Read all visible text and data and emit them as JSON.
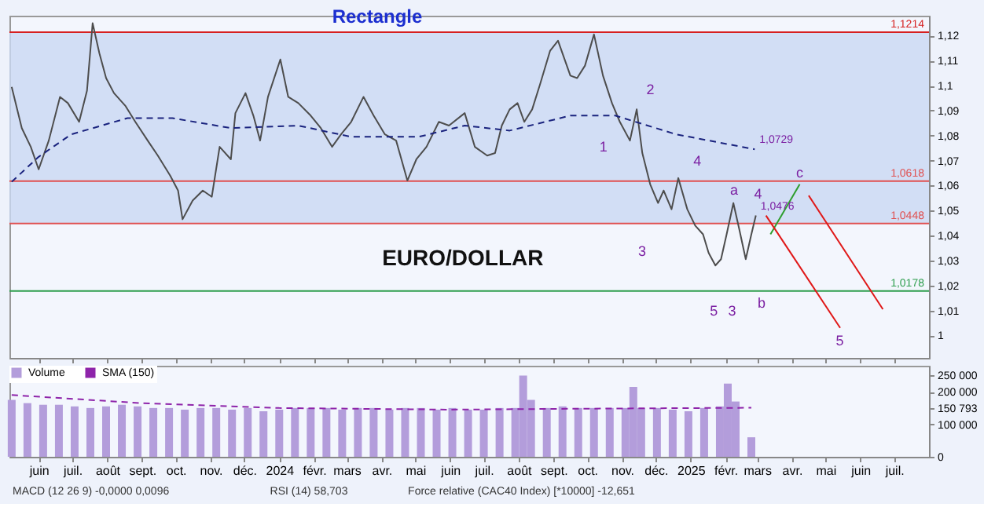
{
  "chart_data": [
    {
      "type": "line",
      "title": "Rectangle",
      "xlim": [
        "2023-05-06",
        "2025-08-01"
      ],
      "xticks": [
        {
          "value": "2023-06",
          "label": null
        },
        {
          "value": "2023-07",
          "label": null
        },
        {
          "value": "2023-08",
          "label": null
        },
        {
          "value": "2023-09",
          "label": null
        },
        {
          "value": "2023-10",
          "label": null
        },
        {
          "value": "2023-11",
          "label": null
        },
        {
          "value": "2023-12",
          "label": null
        },
        {
          "value": "2024-01",
          "label": null
        },
        {
          "value": "2024-02",
          "label": null
        },
        {
          "value": "2024-03",
          "label": null
        },
        {
          "value": "2024-04",
          "label": null
        },
        {
          "value": "2024-05",
          "label": null
        },
        {
          "value": "2024-06",
          "label": null
        },
        {
          "value": "2024-07",
          "label": null
        },
        {
          "value": "2024-08",
          "label": null
        },
        {
          "value": "2024-09",
          "label": null
        },
        {
          "value": "2024-10",
          "label": null
        },
        {
          "value": "2024-11",
          "label": null
        },
        {
          "value": "2024-12",
          "label": null
        },
        {
          "value": "2025-01",
          "label": null
        },
        {
          "value": "2025-02",
          "label": null
        },
        {
          "value": "2025-03",
          "label": null
        },
        {
          "value": "2025-04",
          "label": null
        },
        {
          "value": "2025-05",
          "label": null
        },
        {
          "value": "2025-06",
          "label": null
        },
        {
          "value": "2025-07",
          "label": null
        }
      ],
      "ylim": [
        0.991,
        1.128
      ],
      "yticks": [
        1,
        {
          "value": 1.01,
          "label": "1,01"
        },
        {
          "value": 1.02,
          "label": "1,02"
        },
        {
          "value": 1.03,
          "label": "1,03"
        },
        {
          "value": 1.04,
          "label": "1,04"
        },
        {
          "value": 1.05,
          "label": "1,05"
        },
        {
          "value": 1.06,
          "label": "1,06"
        },
        {
          "value": 1.07,
          "label": "1,07"
        },
        {
          "value": 1.08,
          "label": "1,08"
        },
        {
          "value": 1.09,
          "label": "1,09"
        },
        {
          "value": 1.1,
          "label": "1,1"
        },
        {
          "value": 1.11,
          "label": "1,11"
        },
        {
          "value": 1.12,
          "label": "1,12"
        }
      ],
      "tick_labels": "y",
      "bands": [
        {
          "axis": "y",
          "from": 1.0448,
          "to": 1.1214,
          "color": "#c9d8f2"
        }
      ],
      "ref_lines": [
        {
          "axis": "y",
          "value": 1.1214,
          "label": "1,1214",
          "color": "#d62020"
        },
        {
          "axis": "y",
          "value": 1.0618,
          "label": "1,0618",
          "color": "#e05050"
        },
        {
          "axis": "y",
          "value": 1.0448,
          "label": "1,0448",
          "color": "#e05050"
        },
        {
          "axis": "y",
          "value": 1.0178,
          "label": "1,0178",
          "color": "#2e9e4e"
        }
      ],
      "series": [
        {
          "color": "#4d4d4d",
          "x": [
            "2023-05-08",
            "2023-05-17",
            "2023-05-25",
            "2023-06-01",
            "2023-06-10",
            "2023-06-20",
            "2023-06-27",
            "2023-07-07",
            "2023-07-14",
            "2023-07-19",
            "2023-07-25",
            "2023-07-31",
            "2023-08-07",
            "2023-08-17",
            "2023-08-26",
            "2023-09-06",
            "2023-09-15",
            "2023-09-26",
            "2023-10-03",
            "2023-10-07",
            "2023-10-16",
            "2023-10-25",
            "2023-11-02",
            "2023-11-09",
            "2023-11-19",
            "2023-11-23",
            "2023-12-02",
            "2023-12-09",
            "2023-12-15",
            "2023-12-22",
            "2024-01-02",
            "2024-01-09",
            "2024-01-18",
            "2024-01-29",
            "2024-02-07",
            "2024-02-17",
            "2024-02-25",
            "2024-03-05",
            "2024-03-16",
            "2024-03-25",
            "2024-04-04",
            "2024-04-14",
            "2024-04-24",
            "2024-05-02",
            "2024-05-11",
            "2024-05-22",
            "2024-05-31",
            "2024-06-14",
            "2024-06-23",
            "2024-07-04",
            "2024-07-11",
            "2024-07-17",
            "2024-07-24",
            "2024-07-31",
            "2024-08-06",
            "2024-08-13",
            "2024-08-20",
            "2024-08-29",
            "2024-09-05",
            "2024-09-16",
            "2024-09-22",
            "2024-09-29",
            "2024-10-07",
            "2024-10-15",
            "2024-10-23",
            "2024-10-30",
            "2024-11-08",
            "2024-11-14",
            "2024-11-19",
            "2024-11-26",
            "2024-12-03",
            "2024-12-08",
            "2024-12-15",
            "2024-12-21",
            "2024-12-29",
            "2025-01-05",
            "2025-01-12",
            "2025-01-17",
            "2025-01-23",
            "2025-01-28",
            "2025-02-02",
            "2025-02-08",
            "2025-02-13",
            "2025-02-19",
            "2025-02-24",
            "2025-02-28"
          ],
          "values": [
            1.0995,
            1.083,
            1.0755,
            1.0665,
            1.078,
            1.0955,
            1.093,
            1.0855,
            1.098,
            1.125,
            1.113,
            1.103,
            1.097,
            1.092,
            1.0855,
            1.078,
            1.072,
            1.064,
            1.058,
            1.0465,
            1.054,
            1.058,
            1.0555,
            1.0755,
            1.0705,
            1.089,
            1.097,
            1.088,
            1.078,
            1.0955,
            1.1105,
            1.0955,
            1.093,
            1.088,
            1.083,
            1.0755,
            1.0805,
            1.0855,
            1.0955,
            1.088,
            1.0805,
            1.078,
            1.062,
            1.0705,
            1.0755,
            1.0855,
            1.084,
            1.089,
            1.0755,
            1.072,
            1.073,
            1.084,
            1.0905,
            1.093,
            1.0855,
            1.0905,
            1.1005,
            1.114,
            1.118,
            1.104,
            1.103,
            1.108,
            1.1205,
            1.104,
            1.093,
            1.0855,
            1.078,
            1.0905,
            1.073,
            1.0605,
            1.053,
            1.058,
            1.0505,
            1.063,
            1.0505,
            1.044,
            1.0405,
            1.033,
            1.028,
            1.0305,
            1.0405,
            1.053,
            1.043,
            1.0305,
            1.0405,
            1.048
          ]
        },
        {
          "color": "#1a237e",
          "line_style": "dashed",
          "x": [
            "2023-05-08",
            "2023-06-01",
            "2023-06-30",
            "2023-08-19",
            "2023-09-28",
            "2023-11-19",
            "2024-01-18",
            "2024-03-05",
            "2024-05-04",
            "2024-06-14",
            "2024-07-24",
            "2024-09-16",
            "2024-10-26",
            "2024-12-19",
            "2025-02-27"
          ],
          "values": [
            1.0615,
            1.0715,
            1.0805,
            1.087,
            1.087,
            1.083,
            1.084,
            1.0795,
            1.0795,
            1.084,
            1.082,
            1.088,
            1.088,
            1.0805,
            1.0745
          ]
        },
        {
          "color": "#2e9e2e",
          "x": [
            "2025-03-13",
            "2025-04-08"
          ],
          "values": [
            1.0405,
            1.0605
          ]
        },
        {
          "color": "#e01818",
          "x": [
            "2025-03-09",
            "2025-05-14"
          ],
          "values": [
            1.048,
            1.003
          ]
        },
        {
          "color": "#e01818",
          "x": [
            "2025-04-16",
            "2025-06-21"
          ],
          "values": [
            1.056,
            1.0105
          ]
        }
      ],
      "annotations": [
        "EURO/DOLLAR",
        "1",
        "2",
        "3",
        "4",
        "5",
        "3",
        "a",
        "4",
        "b",
        {
          "text": "c",
          "x": "2025-04-08",
          "y": 1.0625
        },
        "5",
        {
          "text": "1,0729",
          "x": "2025-02-27",
          "y": 1.0745
        },
        {
          "text": "1,0476",
          "x": "2025-02-28",
          "y": 1.048
        }
      ]
    },
    {
      "type": "bar",
      "xlim": [
        "2023-05-06",
        "2025-08-01"
      ],
      "xticks": [
        {
          "value": "2023-06",
          "label": "juin"
        },
        {
          "value": "2023-07",
          "label": "juil."
        },
        {
          "value": "2023-08",
          "label": "août"
        },
        {
          "value": "2023-09",
          "label": "sept."
        },
        {
          "value": "2023-10",
          "label": "oct."
        },
        {
          "value": "2023-11",
          "label": "nov."
        },
        {
          "value": "2023-12",
          "label": "déc."
        },
        {
          "value": "2024-01",
          "label": "2024"
        },
        {
          "value": "2024-02",
          "label": "févr."
        },
        {
          "value": "2024-03",
          "label": "mars"
        },
        {
          "value": "2024-04",
          "label": "avr."
        },
        {
          "value": "2024-05",
          "label": "mai"
        },
        {
          "value": "2024-06",
          "label": "juin"
        },
        {
          "value": "2024-07",
          "label": "juil."
        },
        {
          "value": "2024-08",
          "label": "août"
        },
        {
          "value": "2024-09",
          "label": "sept."
        },
        {
          "value": "2024-10",
          "label": "oct."
        },
        {
          "value": "2024-11",
          "label": "nov."
        },
        {
          "value": "2024-12",
          "label": "déc."
        },
        {
          "value": "2025-01",
          "label": "2025"
        },
        {
          "value": "2025-02",
          "label": "févr."
        },
        {
          "value": "2025-03",
          "label": "mars"
        },
        {
          "value": "2025-04",
          "label": "avr."
        },
        {
          "value": "2025-05",
          "label": "mai"
        },
        {
          "value": "2025-06",
          "label": "juin"
        },
        {
          "value": "2025-07",
          "label": "juil."
        }
      ],
      "ylim": [
        0,
        280000
      ],
      "yticks": [
        0,
        {
          "value": 100000,
          "label": "100 000"
        },
        {
          "value": 150793,
          "label": "150 793"
        },
        {
          "value": 200000,
          "label": "200 000"
        },
        {
          "value": 250000,
          "label": "250 000"
        }
      ],
      "legend": "top left",
      "x": [
        "2023-05-08",
        "2023-05-22",
        "2023-06-05",
        "2023-06-19",
        "2023-07-03",
        "2023-07-17",
        "2023-07-31",
        "2023-08-14",
        "2023-08-28",
        "2023-09-11",
        "2023-09-25",
        "2023-10-09",
        "2023-10-23",
        "2023-11-06",
        "2023-11-20",
        "2023-12-04",
        "2023-12-18",
        "2024-01-01",
        "2024-01-15",
        "2024-01-29",
        "2024-02-12",
        "2024-02-26",
        "2024-03-11",
        "2024-03-25",
        "2024-04-08",
        "2024-04-22",
        "2024-05-06",
        "2024-05-20",
        "2024-06-03",
        "2024-06-17",
        "2024-07-01",
        "2024-07-15",
        "2024-07-29",
        "2024-08-05",
        "2024-08-12",
        "2024-08-26",
        "2024-09-09",
        "2024-09-23",
        "2024-10-07",
        "2024-10-21",
        "2024-11-04",
        "2024-11-11",
        "2024-11-18",
        "2024-12-02",
        "2024-12-16",
        "2024-12-30",
        "2025-01-13",
        "2025-01-27",
        "2025-02-03",
        "2025-02-10",
        "2025-02-24"
      ],
      "series": [
        {
          "name": "Volume",
          "color": "#b39ddb",
          "values": [
            175000,
            165000,
            160000,
            160000,
            155000,
            150000,
            155000,
            160000,
            155000,
            150000,
            150000,
            145000,
            150000,
            150000,
            145000,
            150000,
            140000,
            145000,
            150000,
            150000,
            150000,
            145000,
            150000,
            150000,
            145000,
            150000,
            150000,
            145000,
            150000,
            145000,
            145000,
            150000,
            150000,
            250000,
            175000,
            150000,
            155000,
            150000,
            150000,
            150000,
            150000,
            215000,
            150000,
            150000,
            145000,
            140000,
            150000,
            155000,
            225000,
            170000,
            60000
          ]
        },
        {
          "name": "SMA (150)",
          "type": "line",
          "color": "#8e24aa",
          "line_style": "dashed",
          "x": [
            "2023-05-08",
            "2023-09-01",
            "2024-01-01",
            "2024-06-01",
            "2024-10-01",
            "2025-02-24"
          ],
          "values": [
            190000,
            165000,
            150000,
            145000,
            148000,
            150793
          ]
        }
      ],
      "annotations": [
        "MACD (12 26 9) -0,0000 0,0096",
        "RSI (14) 58,703",
        "Force relative (CAC40 Index) [*10000] -12,651"
      ]
    }
  ]
}
